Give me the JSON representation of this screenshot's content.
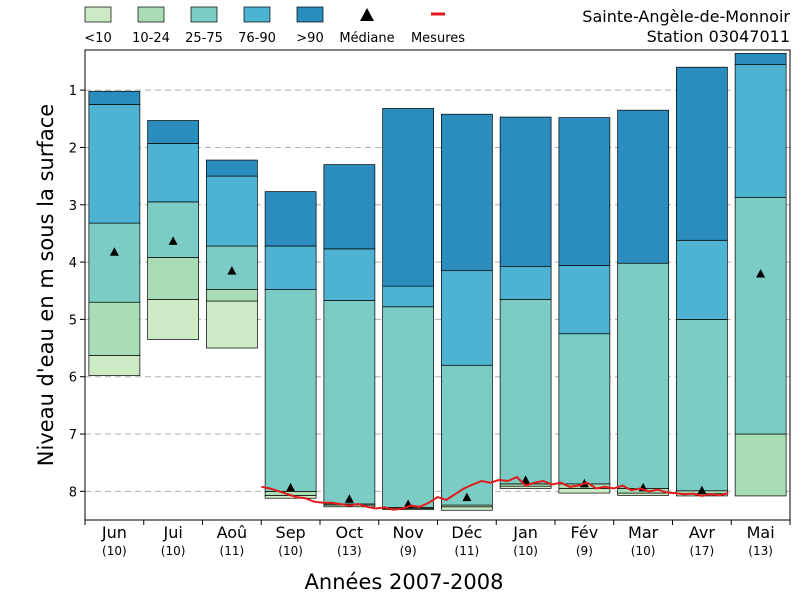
{
  "station": {
    "name": "Sainte-Angèle-de-Monnoir",
    "code": "Station 03047011"
  },
  "legend": [
    {
      "label": "<10",
      "kind": "box",
      "color": "#ccebc5"
    },
    {
      "label": "10-24",
      "kind": "box",
      "color": "#a8ddb5"
    },
    {
      "label": "25-75",
      "kind": "box",
      "color": "#7bccc4"
    },
    {
      "label": "76-90",
      "kind": "box",
      "color": "#4eb3d3"
    },
    {
      "label": ">90",
      "kind": "box",
      "color": "#2b8cbe"
    },
    {
      "label": "Médiane",
      "kind": "triangle",
      "color": "#000000"
    },
    {
      "label": "Mesures",
      "kind": "line",
      "color": "#e31a1c"
    }
  ],
  "chart_data": {
    "type": "bar",
    "subtype": "stacked-percentile-range",
    "title": "",
    "xlabel": "Années 2007-2008",
    "ylabel": "Niveau d'eau en m sous la surface",
    "ylim": [
      8.5,
      0.3
    ],
    "y_inverted": true,
    "yticks": [
      1,
      2,
      3,
      4,
      5,
      6,
      7,
      8
    ],
    "grid": "horizontal-dashed",
    "categories": [
      "Jun",
      "Jui",
      "Aoû",
      "Sep",
      "Oct",
      "Nov",
      "Déc",
      "Jan",
      "Fév",
      "Mar",
      "Avr",
      "Mai"
    ],
    "counts": [
      "(10)",
      "(10)",
      "(11)",
      "(10)",
      "(13)",
      "(9)",
      "(11)",
      "(10)",
      "(9)",
      "(10)",
      "(17)",
      "(13)"
    ],
    "band_order": [
      "<10",
      "10-24",
      "25-75",
      "76-90",
      ">90"
    ],
    "colors": [
      "#ccebc5",
      "#a8ddb5",
      "#7bccc4",
      "#4eb3d3",
      "#2b8cbe"
    ],
    "bands": [
      {
        "month": "Jun",
        "levels": [
          5.98,
          5.63,
          4.7,
          3.32,
          1.25,
          1.02
        ]
      },
      {
        "month": "Jui",
        "levels": [
          5.35,
          4.65,
          3.92,
          2.95,
          1.93,
          1.53
        ]
      },
      {
        "month": "Aoû",
        "levels": [
          5.5,
          4.68,
          4.48,
          3.72,
          2.5,
          2.22
        ]
      },
      {
        "month": "Sep",
        "levels": [
          8.12,
          8.07,
          8.0,
          4.48,
          3.72,
          2.77
        ]
      },
      {
        "month": "Oct",
        "levels": [
          8.27,
          8.24,
          8.22,
          4.67,
          3.77,
          2.3
        ]
      },
      {
        "month": "Nov",
        "levels": [
          8.32,
          8.3,
          8.28,
          4.78,
          4.42,
          1.32
        ]
      },
      {
        "month": "Déc",
        "levels": [
          8.33,
          8.27,
          8.24,
          5.8,
          4.15,
          1.42
        ]
      },
      {
        "month": "Jan",
        "levels": [
          7.95,
          7.91,
          7.87,
          4.65,
          4.08,
          1.47
        ]
      },
      {
        "month": "Fév",
        "levels": [
          8.03,
          7.95,
          7.87,
          5.25,
          4.06,
          1.48
        ]
      },
      {
        "month": "Mar",
        "levels": [
          8.07,
          8.03,
          7.95,
          4.02,
          4.02,
          1.35
        ]
      },
      {
        "month": "Avr",
        "levels": [
          8.08,
          8.04,
          7.99,
          5.0,
          3.62,
          0.6
        ]
      },
      {
        "month": "Mai",
        "levels": [
          8.08,
          8.08,
          7.0,
          2.87,
          0.55,
          0.36
        ]
      }
    ],
    "median": [
      3.82,
      3.63,
      4.15,
      7.93,
      8.13,
      8.22,
      8.1,
      7.8,
      7.86,
      7.93,
      7.98,
      4.2
    ],
    "measures": {
      "name": "Mesures",
      "x": [
        3.0,
        3.15,
        3.3,
        3.45,
        3.6,
        3.75,
        3.9,
        4.05,
        4.2,
        4.35,
        4.5,
        4.65,
        4.8,
        4.95,
        5.1,
        5.25,
        5.4,
        5.55,
        5.7,
        5.85,
        6.0,
        6.15,
        6.3,
        6.45,
        6.6,
        6.75,
        6.9,
        7.05,
        7.2,
        7.35,
        7.5,
        7.65,
        7.8,
        7.95,
        8.1,
        8.25,
        8.4,
        8.55,
        8.7,
        8.85,
        9.0,
        9.15,
        9.3,
        9.45,
        9.6,
        9.75,
        9.9,
        10.05,
        10.2,
        10.35,
        10.5,
        10.65,
        10.8,
        10.95
      ],
      "y": [
        7.92,
        7.95,
        8.0,
        8.05,
        8.1,
        8.12,
        8.18,
        8.2,
        8.2,
        8.22,
        8.25,
        8.22,
        8.27,
        8.3,
        8.28,
        8.32,
        8.3,
        8.25,
        8.27,
        8.2,
        8.1,
        8.15,
        8.05,
        7.95,
        7.88,
        7.82,
        7.85,
        7.8,
        7.82,
        7.75,
        7.9,
        7.85,
        7.82,
        7.88,
        7.85,
        7.92,
        7.9,
        7.85,
        7.95,
        7.92,
        7.95,
        7.9,
        7.98,
        7.95,
        8.0,
        7.97,
        8.02,
        8.03,
        8.05,
        8.04,
        8.08,
        8.05,
        8.07,
        8.03
      ],
      "color": "#e31a1c"
    }
  }
}
